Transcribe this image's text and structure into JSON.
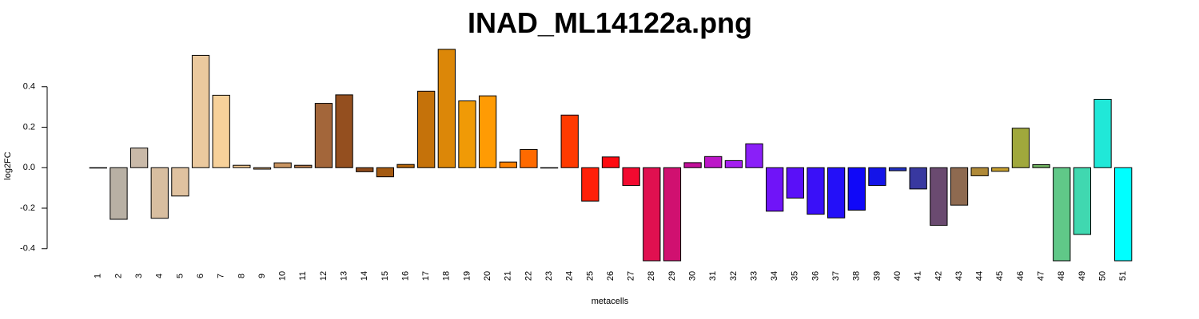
{
  "chart_data": {
    "type": "bar",
    "title": "INAD_ML14122a.png",
    "xlabel": "metacells",
    "ylabel": "log2FC",
    "ylim": [
      -0.46,
      0.6
    ],
    "yticks": [
      -0.4,
      -0.2,
      0.0,
      0.2,
      0.4
    ],
    "ytick_labels": [
      "-0.4",
      "-0.2",
      "0.0",
      "0.2",
      "0.4"
    ],
    "categories": [
      "1",
      "2",
      "3",
      "4",
      "5",
      "6",
      "7",
      "8",
      "9",
      "10",
      "11",
      "12",
      "13",
      "14",
      "15",
      "16",
      "17",
      "18",
      "19",
      "20",
      "21",
      "22",
      "23",
      "24",
      "25",
      "26",
      "27",
      "28",
      "29",
      "30",
      "31",
      "32",
      "33",
      "34",
      "35",
      "36",
      "37",
      "38",
      "39",
      "40",
      "41",
      "42",
      "43",
      "44",
      "45",
      "46",
      "47",
      "48",
      "49",
      "50",
      "51"
    ],
    "values": [
      0.0,
      -0.255,
      0.097,
      -0.25,
      -0.14,
      0.555,
      0.358,
      0.012,
      -0.007,
      0.024,
      0.012,
      0.318,
      0.36,
      -0.02,
      -0.045,
      0.016,
      0.378,
      0.585,
      0.33,
      0.355,
      0.028,
      0.09,
      0.0,
      0.26,
      -0.165,
      0.053,
      -0.088,
      -0.46,
      -0.46,
      0.025,
      0.055,
      0.035,
      0.118,
      -0.215,
      -0.15,
      -0.23,
      -0.248,
      -0.21,
      -0.088,
      -0.015,
      -0.105,
      -0.285,
      -0.185,
      -0.04,
      -0.018,
      0.195,
      0.015,
      -0.46,
      -0.33,
      0.338,
      -0.46
    ],
    "colors": [
      "#fcfcfc",
      "#b8b0a4",
      "#c9b9a8",
      "#d8bea0",
      "#e0c2a0",
      "#ebc99e",
      "#f7d19a",
      "#f0c890",
      "#d8aa78",
      "#c99562",
      "#b87e4e",
      "#a3663a",
      "#944f1f",
      "#8e4b1b",
      "#a45a12",
      "#b4640a",
      "#c5720a",
      "#dc8708",
      "#f09a06",
      "#ff9b04",
      "#ff8200",
      "#ff6a00",
      "#ff5000",
      "#ff3a00",
      "#ff2008",
      "#ff0a10",
      "#f20a30",
      "#e01050",
      "#d01070",
      "#c2109a",
      "#bc16c8",
      "#a41ef0",
      "#8a1ff8",
      "#7014f8",
      "#5a10f8",
      "#3a10f8",
      "#2410f8",
      "#1008f8",
      "#1414e8",
      "#2030c0",
      "#3838a0",
      "#6a4a70",
      "#8e6a50",
      "#b08a38",
      "#c8a030",
      "#a0a83c",
      "#70b060",
      "#60c888",
      "#40d8b0",
      "#20e8d8",
      "#00ffff"
    ]
  }
}
